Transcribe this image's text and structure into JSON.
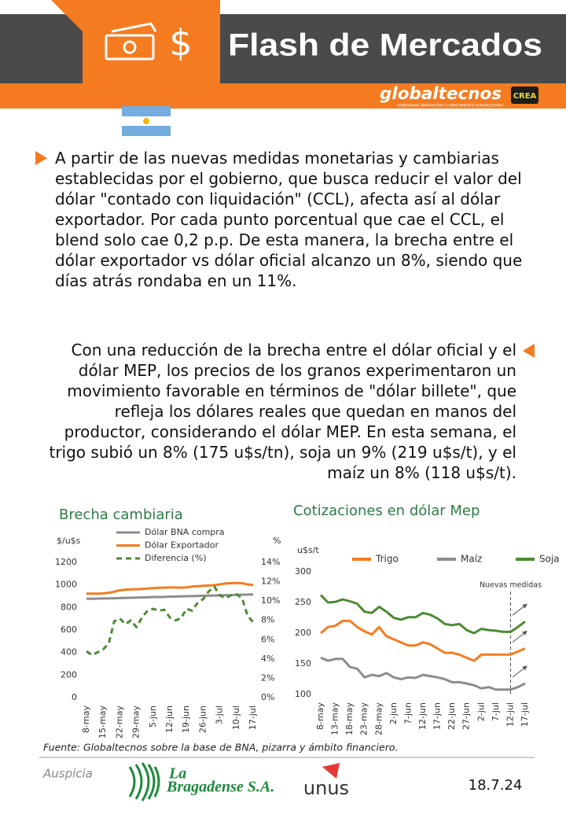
{
  "header": {
    "title": "Flash de Mercados",
    "brand": "globaltecnos",
    "brand_tagline": "GENERAMOS INNOVACIÓN Y CONOCIMIENTO AGROPECUARIO",
    "partner": "CREA"
  },
  "paragraphs": [
    "A partir de las nuevas medidas monetarias y cambiarias establecidas por el gobierno, que busca reducir el valor del dólar \"contado con liquidación\" (CCL), afecta así al dólar exportador. Por cada punto porcentual que cae el CCL, el blend solo cae 0,2 p.p. De esta manera, la brecha entre el dólar exportador vs dólar oficial alcanzo un 8%, siendo que días atrás rondaba en un 11%.",
    "Con una reducción de la brecha entre el dólar oficial y el dólar MEP, los precios de los granos experimentaron un movimiento favorable en términos de \"dólar billete\", que refleja los dólares reales que quedan en manos del productor, considerando el dólar MEP. En esta semana, el trigo subió un 8% (175 u$s/tn), soja un 9% (219 u$s/t), y el maíz un 8% (118 u$s/t)."
  ],
  "chart_data": [
    {
      "type": "line",
      "title": "Brecha cambiaria",
      "ylabel": "$/u$s",
      "y2label": "%",
      "legend": "top-left",
      "categories": [
        "8-may",
        null,
        null,
        "15-may",
        null,
        null,
        "22-may",
        null,
        null,
        "29-may",
        null,
        null,
        "5-jun",
        null,
        null,
        "12-jun",
        null,
        null,
        "19-jun",
        null,
        null,
        "26-jun",
        null,
        null,
        "3-jul",
        null,
        null,
        "10-jul",
        null,
        null,
        "17-jul"
      ],
      "ylim": [
        0,
        1200
      ],
      "yticks": [
        0,
        200,
        400,
        600,
        800,
        1000,
        1200
      ],
      "y2lim": [
        0,
        14
      ],
      "y2ticks": [
        {
          "value": 0,
          "label": "0%"
        },
        {
          "value": 2,
          "label": "2%"
        },
        {
          "value": 4,
          "label": "4%"
        },
        {
          "value": 6,
          "label": "6%"
        },
        {
          "value": 8,
          "label": "8%"
        },
        {
          "value": 10,
          "label": "10%"
        },
        {
          "value": 12,
          "label": "12%"
        },
        {
          "value": 14,
          "label": "14%"
        }
      ],
      "series": [
        {
          "name": "Dólar BNA compra",
          "color": "#8c8c8c",
          "values": [
            878,
            878,
            879,
            880,
            881,
            882,
            883,
            885,
            886,
            888,
            889,
            890,
            892,
            893,
            894,
            896,
            897,
            898,
            900,
            901,
            902,
            904,
            905,
            906,
            908,
            909,
            910,
            912,
            913,
            914,
            916
          ]
        },
        {
          "name": "Dólar Exportador",
          "color": "#f47b20",
          "values": [
            922,
            922,
            923,
            925,
            930,
            940,
            952,
            958,
            960,
            962,
            965,
            968,
            972,
            975,
            976,
            978,
            977,
            976,
            978,
            985,
            988,
            992,
            995,
            998,
            1005,
            1012,
            1015,
            1018,
            1015,
            1005,
            1000
          ]
        },
        {
          "name": "Diferencia (%)",
          "color": "#4e8a34",
          "dash": true,
          "axis": "y2",
          "values": [
            4.8,
            4.4,
            4.7,
            5.0,
            5.6,
            7.9,
            8.2,
            7.6,
            8.0,
            7.3,
            8.3,
            9.0,
            9.2,
            9.0,
            9.1,
            8.3,
            8.0,
            8.2,
            9.2,
            9.0,
            9.8,
            10.2,
            11.0,
            11.5,
            10.6,
            10.3,
            10.6,
            10.7,
            10.3,
            8.5,
            7.8
          ]
        }
      ]
    },
    {
      "type": "line",
      "title": "Cotizaciones en dólar Mep",
      "ylabel": "u$s/t",
      "legend": "top",
      "categories": [
        "8-may",
        null,
        "13-may",
        null,
        "18-may",
        null,
        "23-may",
        null,
        "28-may",
        null,
        "2-jun",
        null,
        "7-jun",
        null,
        "12-jun",
        null,
        "17-jun",
        null,
        "22-jun",
        null,
        "27-jun",
        null,
        "2-jul",
        null,
        "7-jul",
        null,
        "12-jul",
        null,
        "17-jul"
      ],
      "ylim": [
        100,
        300
      ],
      "yticks": [
        100,
        150,
        200,
        250,
        300
      ],
      "annotations": [
        {
          "text": "Nuevas medidas",
          "x": "12-jul"
        }
      ],
      "series": [
        {
          "name": "Trigo",
          "color": "#f47b20",
          "values": [
            200,
            210,
            212,
            220,
            220,
            210,
            203,
            198,
            210,
            195,
            190,
            185,
            180,
            180,
            185,
            182,
            175,
            168,
            168,
            165,
            160,
            155,
            165,
            165,
            165,
            165,
            165,
            170,
            175
          ]
        },
        {
          "name": "Maíz",
          "color": "#8c8c8c",
          "values": [
            160,
            155,
            158,
            158,
            145,
            142,
            128,
            132,
            130,
            135,
            128,
            125,
            128,
            127,
            132,
            130,
            128,
            125,
            120,
            120,
            118,
            115,
            110,
            112,
            108,
            108,
            108,
            112,
            118
          ]
        },
        {
          "name": "Soja",
          "color": "#4e8a34",
          "values": [
            262,
            250,
            251,
            255,
            252,
            248,
            235,
            233,
            243,
            235,
            225,
            222,
            226,
            226,
            233,
            230,
            224,
            215,
            213,
            215,
            205,
            200,
            207,
            205,
            204,
            202,
            202,
            210,
            219
          ]
        }
      ]
    }
  ],
  "footer": {
    "source": "Fuente: Globaltecnos sobre la base de BNA, pizarra y ámbito financiero.",
    "sponsor_label": "Auspicia",
    "sponsor_1_lines": [
      "La",
      "Bragadense S.A."
    ],
    "sponsor_2": "unus",
    "date": "18.7.24"
  }
}
